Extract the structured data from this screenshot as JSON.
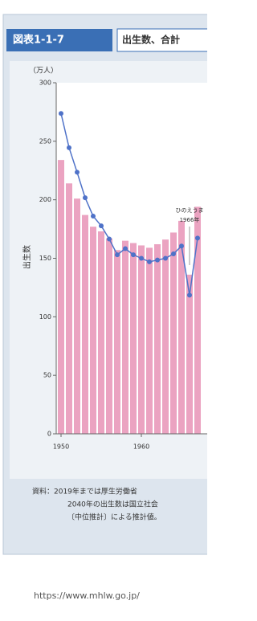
{
  "chart_data": {
    "type": "bar",
    "label": "図表1-1-7",
    "title": "出生数、合計",
    "y_unit": "（万人）",
    "ylabel": "出生数",
    "x": [
      1950,
      1951,
      1952,
      1953,
      1954,
      1955,
      1956,
      1957,
      1958,
      1959,
      1960,
      1961,
      1962,
      1963,
      1964,
      1965,
      1966,
      1967
    ],
    "xlim": [
      1949.4,
      1968.4
    ],
    "xticks": [
      1950,
      1960
    ],
    "ylim": [
      0,
      300
    ],
    "yticks": [
      0,
      50,
      100,
      150,
      200,
      250,
      300
    ],
    "y2lim": [
      0,
      4
    ],
    "series": [
      {
        "color": "#eba3c1",
        "values": [
          234,
          214,
          201,
          187,
          177,
          173,
          167,
          157,
          165,
          163,
          161,
          159,
          162,
          166,
          172,
          182,
          136,
          194
        ]
      },
      {
        "color": "#4f72c8",
        "axis": "y2",
        "values": [
          3.65,
          3.26,
          2.98,
          2.69,
          2.48,
          2.37,
          2.22,
          2.04,
          2.11,
          2.04,
          2.0,
          1.96,
          1.98,
          2.0,
          2.05,
          2.14,
          1.58,
          2.23
        ]
      }
    ],
    "annotation": {
      "lines": [
        "ひのえうま",
        "1966年"
      ],
      "x": 1966
    },
    "notes": [
      "資料：2019年までは厚生労働省",
      "2040年の出生数は国立社会",
      "〔中位推計〕による推計値。"
    ],
    "source": "https://www.mhlw.go.jp/"
  }
}
